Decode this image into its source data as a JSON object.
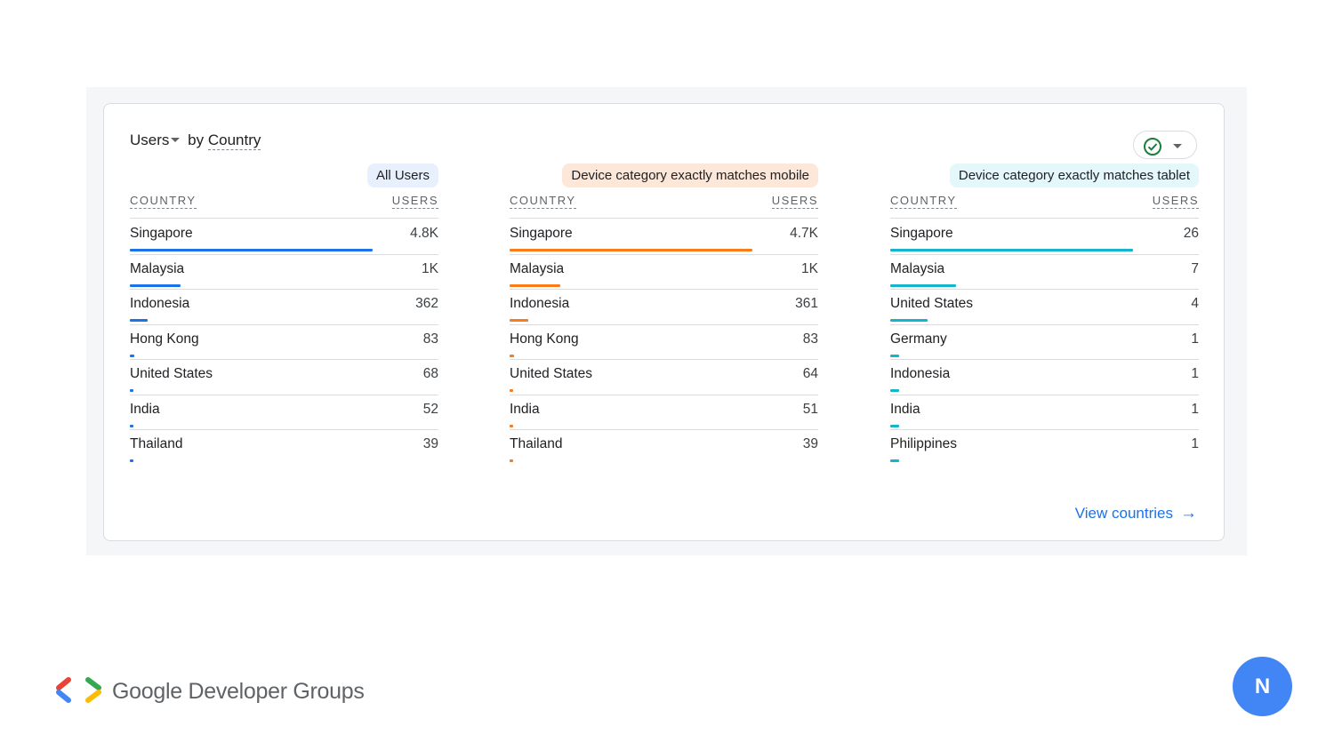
{
  "card": {
    "metric": "Users",
    "by": "by",
    "dimension": "Country",
    "view_link": "View countries"
  },
  "colors": {
    "all_users": "#1a73e8",
    "mobile": "#fa7b17",
    "tablet": "#12b5cb"
  },
  "panels": [
    {
      "chip": "All Users",
      "chip_bg": "#e8f0fe",
      "bar_color": "#1a73e8",
      "col_country": "COUNTRY",
      "col_users": "USERS",
      "rows": [
        {
          "country": "Singapore",
          "users": "4.8K",
          "share": 1.0
        },
        {
          "country": "Malaysia",
          "users": "1K",
          "share": 0.21
        },
        {
          "country": "Indonesia",
          "users": "362",
          "share": 0.075
        },
        {
          "country": "Hong Kong",
          "users": "83",
          "share": 0.017
        },
        {
          "country": "United States",
          "users": "68",
          "share": 0.014
        },
        {
          "country": "India",
          "users": "52",
          "share": 0.011
        },
        {
          "country": "Thailand",
          "users": "39",
          "share": 0.008
        }
      ]
    },
    {
      "chip": "Device category exactly matches mobile",
      "chip_bg": "#fde7d9",
      "bar_color": "#fa7b17",
      "col_country": "COUNTRY",
      "col_users": "USERS",
      "rows": [
        {
          "country": "Singapore",
          "users": "4.7K",
          "share": 1.0
        },
        {
          "country": "Malaysia",
          "users": "1K",
          "share": 0.21
        },
        {
          "country": "Indonesia",
          "users": "361",
          "share": 0.077
        },
        {
          "country": "Hong Kong",
          "users": "83",
          "share": 0.018
        },
        {
          "country": "United States",
          "users": "64",
          "share": 0.014
        },
        {
          "country": "India",
          "users": "51",
          "share": 0.011
        },
        {
          "country": "Thailand",
          "users": "39",
          "share": 0.008
        }
      ]
    },
    {
      "chip": "Device category exactly matches tablet",
      "chip_bg": "#e4f7fb",
      "bar_color": "#12b5cb",
      "col_country": "COUNTRY",
      "col_users": "USERS",
      "rows": [
        {
          "country": "Singapore",
          "users": "26",
          "share": 1.0
        },
        {
          "country": "Malaysia",
          "users": "7",
          "share": 0.27
        },
        {
          "country": "United States",
          "users": "4",
          "share": 0.154
        },
        {
          "country": "Germany",
          "users": "1",
          "share": 0.038
        },
        {
          "country": "Indonesia",
          "users": "1",
          "share": 0.038
        },
        {
          "country": "India",
          "users": "1",
          "share": 0.038
        },
        {
          "country": "Philippines",
          "users": "1",
          "share": 0.038
        }
      ]
    }
  ],
  "footer": {
    "brand": "Google Developer Groups",
    "avatar_letter": "N"
  }
}
